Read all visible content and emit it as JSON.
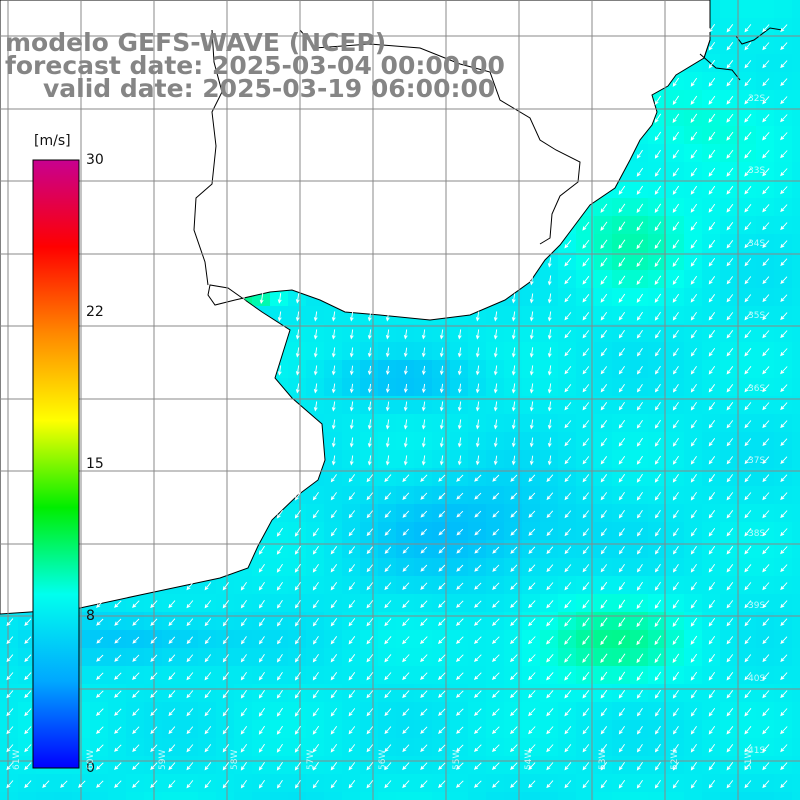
{
  "title": {
    "line1": "modelo GEFS-WAVE (NCEP)",
    "line2": "forecast date: 2025-03-04 00:00:00",
    "line3": "valid date: 2025-03-19 06:00:00"
  },
  "colorbar": {
    "unit": "[m/s]",
    "min": 0,
    "max": 30,
    "ticks": [
      "30",
      "22",
      "15",
      "8",
      "0"
    ],
    "colors": [
      "#0000ff",
      "#00a8ff",
      "#00ffee",
      "#00ee00",
      "#ffff00",
      "#ff8800",
      "#ff0000",
      "#c80090"
    ]
  },
  "map": {
    "variable": "wind speed",
    "arrow_direction": "from NE to SW",
    "lat_labels": [
      "32S",
      "33S",
      "34S",
      "35S",
      "36S",
      "37S",
      "38S",
      "39S",
      "40S",
      "41S"
    ],
    "lon_labels": [
      "61W",
      "60W",
      "59W",
      "58W",
      "57W",
      "56W",
      "55W",
      "54W",
      "53W",
      "52W",
      "51W"
    ],
    "colors": {
      "land": "#ffffff",
      "coast": "#000000",
      "grid": "#888888",
      "arrow": "#ffffff"
    }
  }
}
